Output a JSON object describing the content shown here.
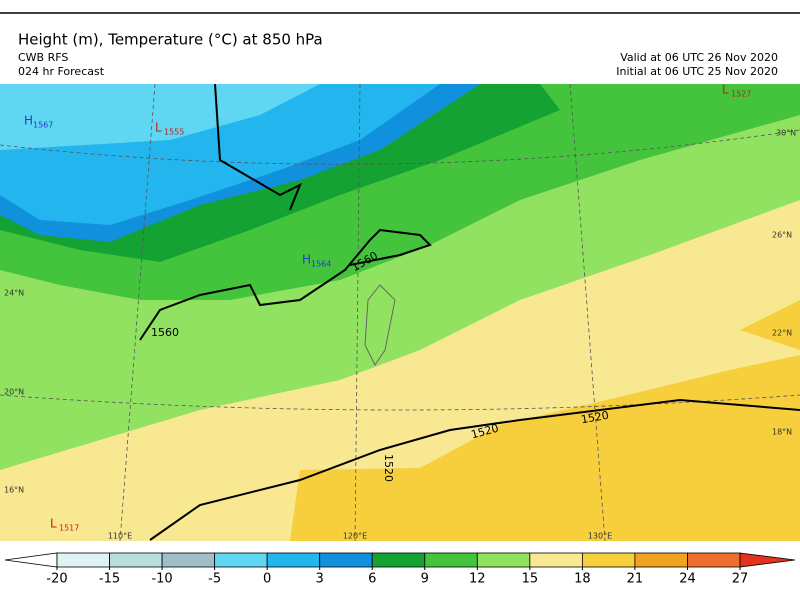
{
  "header": {
    "title": "Height (m), Temperature (°C) at 850 hPa",
    "model": "CWB RFS",
    "forecast": "024 hr Forecast",
    "valid": "Valid at 06 UTC 26 Nov 2020",
    "initial": "Initial at 06 UTC 25 Nov 2020"
  },
  "colorbar": {
    "ticks": [
      -20,
      -15,
      -10,
      -5,
      0,
      3,
      6,
      9,
      12,
      15,
      18,
      21,
      24,
      27
    ],
    "colors": [
      "#ffffff",
      "#dff3f5",
      "#b9dede",
      "#9fbfc6",
      "#5fd6f2",
      "#23b6ee",
      "#1190de",
      "#14a232",
      "#43c43c",
      "#92e262",
      "#f8e892",
      "#f7cf3c",
      "#f0a220",
      "#ef6e2c",
      "#e5321e"
    ]
  },
  "map": {
    "centers": [
      {
        "type": "H",
        "value": "1567",
        "color": "#2040c0"
      },
      {
        "type": "L",
        "value": "1555",
        "color": "#c02020"
      },
      {
        "type": "H",
        "value": "1564",
        "color": "#2040c0"
      },
      {
        "type": "L",
        "value": "1527",
        "color": "#c02020"
      },
      {
        "type": "L",
        "value": "1517",
        "color": "#c02020"
      }
    ],
    "contour_labels": [
      "1560",
      "1560",
      "1520",
      "1520",
      "1520"
    ],
    "lat_labels": [
      "30°N",
      "26°N",
      "24°N",
      "22°N",
      "20°N",
      "18°N",
      "16°N"
    ],
    "lon_labels": [
      "110°E",
      "120°E",
      "130°E"
    ]
  }
}
